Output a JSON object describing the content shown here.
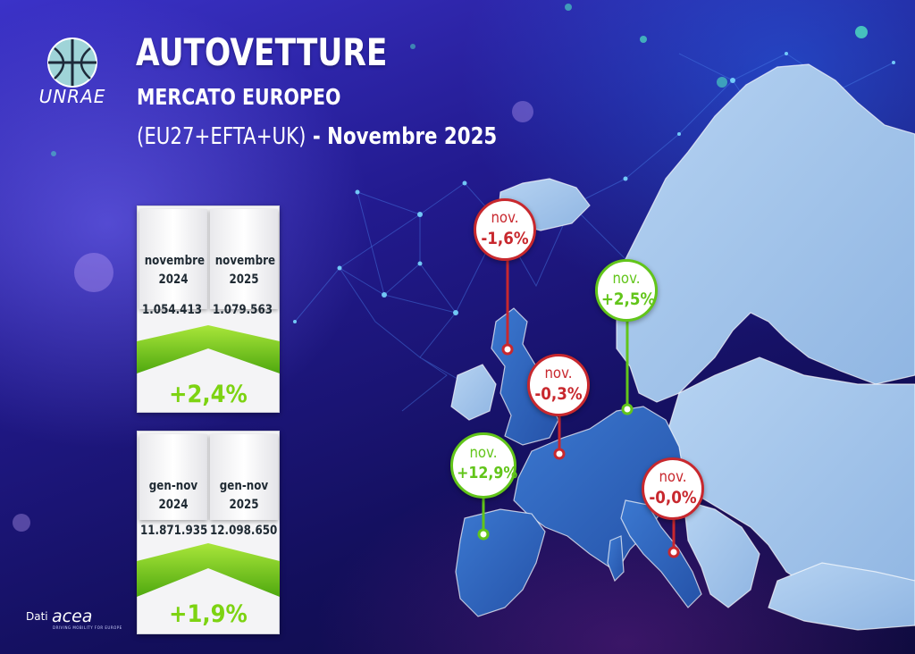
{
  "brand": {
    "logo_text": "UNRAE"
  },
  "header": {
    "title": "AUTOVETTURE",
    "subtitle": "MERCATO EUROPEO",
    "scope": "(EU27+EFTA+UK)",
    "separator": " - ",
    "period": "Novembre 2025"
  },
  "monthly": {
    "col1_label": [
      "novembre",
      "2024"
    ],
    "col2_label": [
      "novembre",
      "2025"
    ],
    "value_2024": "1.054.413",
    "value_2025": "1.079.563",
    "change": "+2,4%"
  },
  "ytd": {
    "col1_label": [
      "gen-nov",
      "2024"
    ],
    "col2_label": [
      "gen-nov",
      "2025"
    ],
    "value_2024": "11.871.935",
    "value_2025": "12.098.650",
    "change": "+1,9%"
  },
  "markers": [
    {
      "country": "UK",
      "label": "nov.",
      "value": "-1,6%",
      "status": "decline"
    },
    {
      "country": "Germany",
      "label": "nov.",
      "value": "+2,5%",
      "status": "growth"
    },
    {
      "country": "France",
      "label": "nov.",
      "value": "-0,3%",
      "status": "decline"
    },
    {
      "country": "Spain",
      "label": "nov.",
      "value": "+12,9%",
      "status": "growth"
    },
    {
      "country": "Italy",
      "label": "nov.",
      "value": "-0,0%",
      "status": "decline"
    }
  ],
  "colors": {
    "growth": "#62c51a",
    "decline": "#c8282e",
    "highlight": "#2f63c4",
    "land": "#9cc0e8"
  },
  "source": {
    "label": "Dati",
    "logo": "acea",
    "tagline": "DRIVING MOBILITY FOR EUROPE"
  }
}
